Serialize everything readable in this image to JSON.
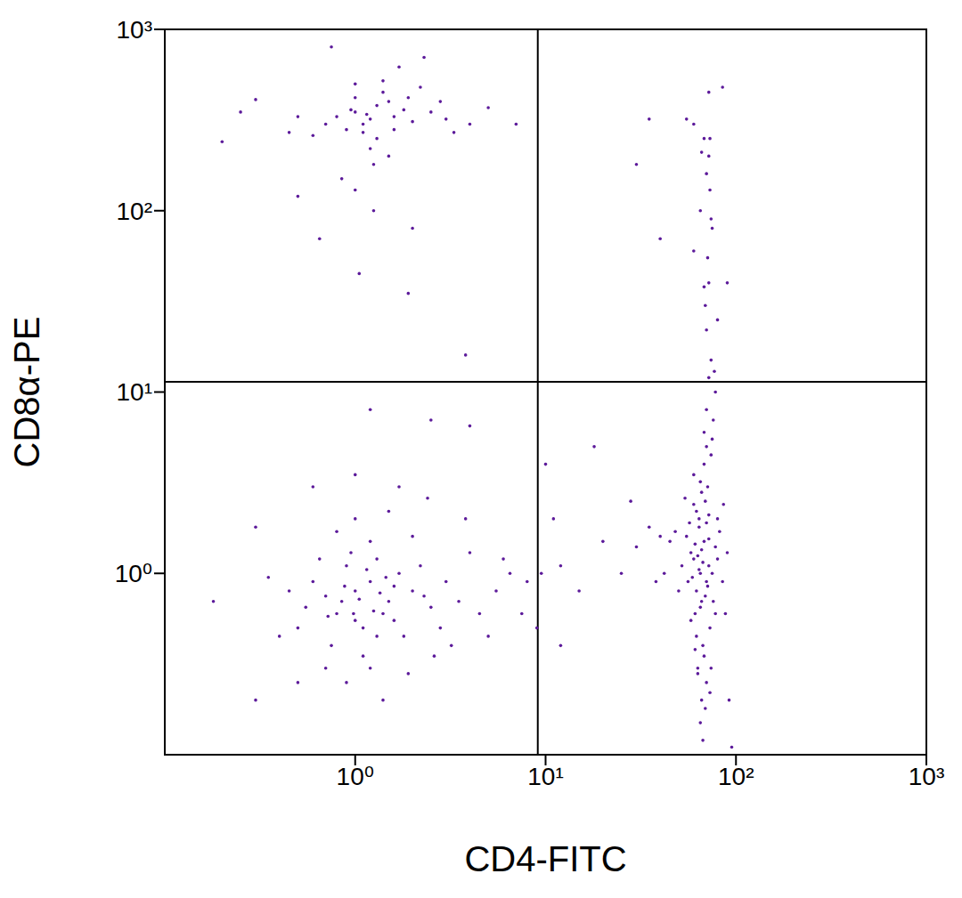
{
  "chart_data": {
    "type": "scatter",
    "x_label": "CD4-FITC",
    "y_label": "CD8α-PE",
    "color": "#5c1a9a",
    "log": true,
    "grid": false,
    "marker": "dot",
    "xlim": [
      0.1,
      1000
    ],
    "ylim": [
      0.1,
      1000
    ],
    "xticks": [
      {
        "value": 1,
        "label": "10⁰"
      },
      {
        "value": 10,
        "label": "10¹"
      },
      {
        "value": 100,
        "label": "10²"
      },
      {
        "value": 1000,
        "label": "10³"
      }
    ],
    "yticks": [
      {
        "value": 1,
        "label": "10⁰"
      },
      {
        "value": 10,
        "label": "10¹"
      },
      {
        "value": 100,
        "label": "10²"
      },
      {
        "value": 1000,
        "label": "10³"
      }
    ],
    "gates": {
      "x": 9.1,
      "y": 11.4
    },
    "x": [
      1.0,
      0.8,
      1.2,
      1.5,
      0.9,
      1.1,
      0.7,
      1.3,
      2.0,
      0.6,
      1.0,
      1.4,
      0.85,
      1.7,
      2.5,
      3.0,
      0.5,
      1.2,
      0.95,
      1.8,
      0.75,
      1.1,
      2.2,
      3.5,
      4.5,
      0.65,
      1.6,
      1.3,
      0.55,
      2.8,
      1.0,
      0.8,
      1.5,
      2.0,
      0.45,
      0.35,
      5.5,
      6.5,
      7.5,
      4.0,
      1.2,
      0.9,
      1.9,
      2.6,
      1.4,
      0.7,
      3.2,
      0.4,
      0.3,
      0.3,
      1.05,
      1.25,
      0.88,
      1.45,
      1.15,
      0.98,
      1.6,
      0.72,
      2.3,
      1.35,
      5.0,
      6.0,
      8.0,
      3.8,
      2.4,
      1.7,
      1.0,
      0.6,
      0.18,
      0.5,
      65,
      60,
      70,
      68,
      62,
      72,
      58,
      66,
      75,
      55,
      64,
      69,
      61,
      73,
      67,
      63,
      70,
      66,
      65,
      71,
      60,
      68,
      74,
      62,
      57,
      78,
      80,
      52,
      48,
      85,
      90,
      45,
      40,
      35,
      30,
      59,
      64,
      67,
      71,
      63,
      66,
      69,
      61,
      72,
      65,
      58,
      76,
      62,
      68,
      74,
      64,
      70,
      60,
      66,
      72,
      56,
      78,
      80,
      54,
      63,
      69,
      67,
      73,
      61,
      65,
      70,
      75,
      68,
      82,
      50,
      20,
      25,
      15,
      12,
      28,
      42,
      38,
      92,
      88,
      86,
      1.2,
      1.0,
      1.5,
      0.9,
      1.3,
      1.1,
      1.8,
      0.8,
      1.4,
      2.0,
      1.6,
      1.0,
      0.7,
      2.5,
      3.0,
      1.2,
      0.6,
      1.5,
      0.5,
      4.0,
      1.4,
      1.0,
      2.2,
      1.7,
      0.75,
      2.3,
      0.3,
      0.25,
      0.2,
      5.0,
      7.0,
      1.3,
      1.1,
      0.95,
      1.9,
      1.25,
      1.0,
      0.85,
      0.5,
      0.65,
      1.05,
      2.0,
      1.9,
      3.8,
      1.25,
      0.45,
      3.3,
      2.8,
      1.6,
      1.15,
      72,
      85,
      55,
      60,
      68,
      72,
      70,
      73,
      65,
      75,
      60,
      72,
      68,
      80,
      70,
      74,
      72,
      78,
      70,
      76,
      40,
      35,
      30,
      90,
      73,
      66,
      74,
      71,
      69,
      77,
      10,
      18,
      9.5,
      11,
      1.2,
      2.5,
      4.0,
      12,
      9,
      95
    ],
    "values": [
      0.8,
      0.6,
      0.9,
      0.7,
      1.1,
      0.5,
      0.75,
      1.2,
      0.8,
      0.9,
      0.55,
      0.6,
      0.7,
      1.0,
      0.65,
      0.9,
      0.5,
      1.5,
      1.3,
      0.45,
      0.4,
      0.35,
      1.1,
      0.7,
      0.6,
      1.2,
      0.85,
      0.45,
      0.65,
      0.5,
      2.0,
      1.7,
      2.2,
      1.6,
      0.8,
      0.95,
      0.8,
      1.0,
      0.6,
      1.3,
      0.3,
      0.25,
      0.28,
      0.35,
      0.2,
      0.3,
      0.4,
      0.45,
      1.8,
      0.2,
      0.72,
      0.62,
      0.85,
      0.95,
      1.05,
      0.6,
      0.55,
      0.58,
      0.75,
      0.78,
      0.45,
      1.2,
      0.9,
      2.0,
      2.6,
      3.0,
      3.5,
      3.0,
      0.7,
      0.25,
      1.0,
      1.2,
      0.9,
      1.5,
      0.8,
      1.1,
      1.3,
      0.7,
      1.0,
      1.6,
      2.0,
      2.5,
      0.6,
      0.5,
      0.4,
      0.3,
      0.25,
      0.2,
      0.15,
      3.0,
      3.5,
      4.0,
      4.5,
      2.2,
      1.9,
      1.4,
      1.2,
      1.1,
      1.7,
      0.9,
      1.3,
      1.5,
      1.6,
      1.8,
      1.4,
      0.95,
      1.05,
      1.15,
      0.85,
      1.25,
      1.35,
      0.75,
      1.45,
      1.55,
      0.65,
      0.55,
      0.7,
      0.45,
      0.35,
      0.3,
      1.8,
      1.9,
      2.4,
      2.8,
      2.1,
      0.9,
      0.6,
      2.0,
      2.6,
      0.28,
      0.18,
      0.12,
      0.22,
      0.38,
      3.2,
      5.0,
      5.5,
      6.0,
      1.7,
      0.8,
      1.5,
      1.0,
      0.8,
      1.1,
      2.5,
      1.0,
      0.9,
      0.2,
      0.6,
      2.4,
      320,
      350,
      400,
      280,
      250,
      300,
      360,
      330,
      450,
      310,
      280,
      420,
      300,
      350,
      320,
      220,
      260,
      200,
      330,
      300,
      520,
      500,
      480,
      620,
      800,
      700,
      410,
      350,
      240,
      370,
      300,
      380,
      270,
      360,
      420,
      180,
      130,
      150,
      120,
      70,
      45,
      80,
      35,
      16,
      100,
      270,
      270,
      400,
      330,
      340,
      450,
      480,
      320,
      300,
      250,
      200,
      160,
      130,
      100,
      80,
      60,
      40,
      38,
      25,
      22,
      15,
      12,
      10,
      8,
      7,
      70,
      320,
      180,
      40,
      250,
      210,
      90,
      55,
      30,
      13,
      4.0,
      5.0,
      1.0,
      2.0,
      8.0,
      7.0,
      6.5,
      0.4,
      0.5,
      0.11
    ]
  }
}
